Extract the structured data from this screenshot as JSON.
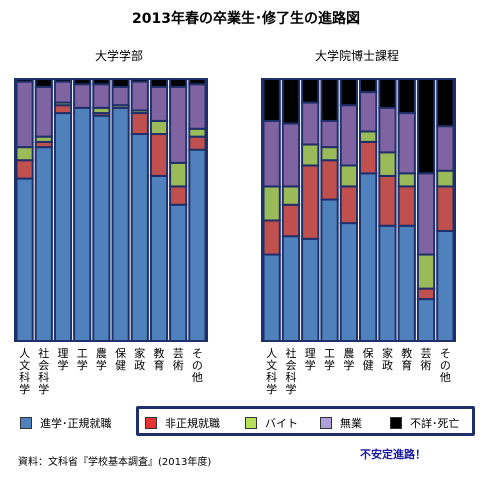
{
  "title": "2013年春の卒業生･修了生の進路図",
  "source": "資料：文科省『学校基本調査』(2013年度)",
  "note": "不安定進路！",
  "legend": [
    {
      "label": "進学･正規就職",
      "color": "#4f81bd"
    },
    {
      "label": "非正規就職",
      "color": "#c0504d"
    },
    {
      "label": "バイト",
      "color": "#9bbb59"
    },
    {
      "label": "無業",
      "color": "#8064a2"
    },
    {
      "label": "不詳･死亡",
      "color": "#000000"
    }
  ],
  "chart_data": [
    {
      "type": "bar",
      "stacked": true,
      "title": "大学学部",
      "categories": [
        "人文科学",
        "社会科学",
        "理学",
        "工学",
        "農学",
        "保健",
        "家政",
        "教育",
        "芸術",
        "その他"
      ],
      "ylim": [
        0,
        100
      ],
      "series": [
        {
          "name": "進学･正規就職",
          "values": [
            62,
            74,
            87,
            89,
            86,
            89,
            79,
            63,
            52,
            73
          ]
        },
        {
          "name": "非正規就職",
          "values": [
            7,
            2,
            3,
            0,
            1,
            0,
            8,
            16,
            7,
            5
          ]
        },
        {
          "name": "バイト",
          "values": [
            5,
            2,
            1,
            0,
            2,
            1,
            1,
            5,
            9,
            3
          ]
        },
        {
          "name": "無業",
          "values": [
            25,
            19,
            8,
            9,
            9,
            7,
            11,
            13,
            29,
            17
          ]
        },
        {
          "name": "不詳･死亡",
          "values": [
            1,
            3,
            1,
            2,
            2,
            3,
            1,
            3,
            3,
            2
          ]
        }
      ]
    },
    {
      "type": "bar",
      "stacked": true,
      "title": "大学院博士課程",
      "categories": [
        "人文科学",
        "社会科学",
        "理学",
        "工学",
        "農学",
        "保健",
        "家政",
        "教育",
        "芸術",
        "その他"
      ],
      "ylim": [
        0,
        100
      ],
      "series": [
        {
          "name": "進学･正規就職",
          "values": [
            33,
            40,
            39,
            54,
            45,
            64,
            44,
            44,
            16,
            42
          ]
        },
        {
          "name": "非正規就職",
          "values": [
            13,
            12,
            28,
            15,
            14,
            12,
            19,
            15,
            4,
            17
          ]
        },
        {
          "name": "バイト",
          "values": [
            13,
            7,
            8,
            5,
            8,
            4,
            9,
            5,
            13,
            6
          ]
        },
        {
          "name": "無業",
          "values": [
            25,
            24,
            16,
            10,
            23,
            15,
            17,
            23,
            31,
            17
          ]
        },
        {
          "name": "不詳･死亡",
          "values": [
            16,
            17,
            9,
            16,
            10,
            5,
            11,
            13,
            36,
            18
          ]
        }
      ]
    }
  ]
}
